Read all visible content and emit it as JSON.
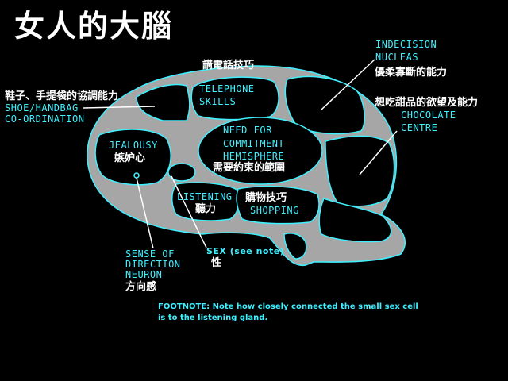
{
  "title": "女人的大腦",
  "regions": {
    "telephone": {
      "zh": "講電話技巧",
      "en1": "TELEPHONE",
      "en2": "SKILLS"
    },
    "indecision": {
      "en1": "INDECISION",
      "en2": "NUCLEAS",
      "zh": "優柔寡斷的能力"
    },
    "shoe": {
      "zh": "鞋子、手提袋的協調能力",
      "en1": "SHOE/HANDBAG",
      "en2": "CO-ORDINATION"
    },
    "chocolate": {
      "zh": "想吃甜品的欲望及能力",
      "en1": "CHOCOLATE",
      "en2": "CENTRE"
    },
    "jealousy": {
      "en": "JEALOUSY",
      "zh": "嫉妒心"
    },
    "commitment": {
      "en1": "NEED FOR",
      "en2": "COMMITMENT",
      "en3": "HEMISPHERE",
      "zh": "需要約束的範圍"
    },
    "listening": {
      "en": "LISTENING",
      "zh": "聽力"
    },
    "shopping": {
      "zh": "購物技巧",
      "en": "SHOPPING"
    },
    "direction": {
      "en1": "SENSE OF",
      "en2": "DIRECTION",
      "en3": "NEURON",
      "zh": "方向感"
    },
    "sex": {
      "en": "SEX (see note)",
      "zh": "性"
    }
  },
  "footnote": {
    "line1": "FOOTNOTE:  Note how closely connected the small sex cell",
    "line2": "is to the listening gland."
  },
  "colors": {
    "brain": "#a6a6a6",
    "outline": "#3ff0ff",
    "cells": "#000000",
    "text": "#ffffff"
  }
}
